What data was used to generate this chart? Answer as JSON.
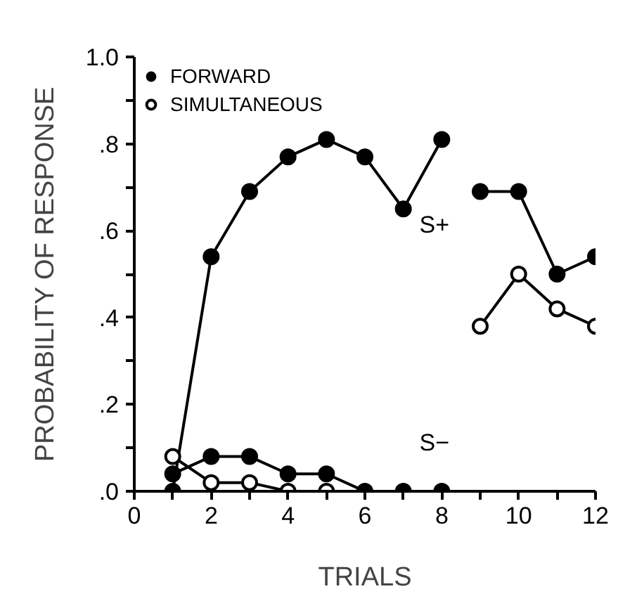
{
  "chart_data": {
    "type": "line",
    "xlabel": "TRIALS",
    "ylabel": "PROBABILITY OF RESPONSE",
    "xlim": [
      0,
      12
    ],
    "ylim": [
      0,
      1.0
    ],
    "xticks": [
      0,
      {
        "value": 1,
        "label": null
      },
      2,
      {
        "value": 3,
        "label": null
      },
      4,
      {
        "value": 5,
        "label": null
      },
      6,
      {
        "value": 7,
        "label": null
      },
      8,
      {
        "value": 9,
        "label": null
      },
      10,
      {
        "value": 11,
        "label": null
      },
      12
    ],
    "yticks": [
      {
        "value": 0,
        "label": ".0"
      },
      {
        "value": 0.1,
        "label": null
      },
      {
        "value": 0.2,
        "label": ".2"
      },
      {
        "value": 0.3,
        "label": null
      },
      {
        "value": 0.4,
        "label": ".4"
      },
      {
        "value": 0.5,
        "label": null
      },
      {
        "value": 0.6,
        "label": ".6"
      },
      {
        "value": 0.7,
        "label": null
      },
      {
        "value": 0.8,
        "label": ".8"
      },
      {
        "value": 0.9,
        "label": null
      },
      {
        "value": 1.0,
        "label": "1.0"
      }
    ],
    "grid": false,
    "legend": "top left",
    "line_style": "solid",
    "series": [
      {
        "name": "FORWARD",
        "color": "#000000",
        "marker": "circle",
        "x": [
          1,
          2,
          3,
          4,
          5,
          6,
          7,
          8
        ],
        "values": [
          0.0,
          0.54,
          0.69,
          0.77,
          0.81,
          0.77,
          0.65,
          0.81
        ]
      },
      {
        "color": "#000000",
        "marker": "circle",
        "x": [
          9,
          10,
          11,
          12
        ],
        "values": [
          0.69,
          0.69,
          0.5,
          0.54
        ]
      },
      {
        "color": "#000000",
        "marker": "circle",
        "x": [
          1,
          2,
          3,
          4,
          5,
          6,
          7,
          8
        ],
        "values": [
          0.04,
          0.08,
          0.08,
          0.04,
          0.04,
          0.0,
          0.0,
          0.0
        ]
      },
      {
        "name": "SIMULTANEOUS",
        "color": "#000000",
        "marker": "circle_open",
        "x": [
          1,
          2,
          3,
          4,
          5
        ],
        "values": [
          0.08,
          0.02,
          0.02,
          0.0,
          0.0
        ]
      },
      {
        "color": "#000000",
        "marker": "circle_open",
        "x": [
          9,
          10,
          11,
          12
        ],
        "values": [
          0.38,
          0.5,
          0.42,
          0.38
        ]
      }
    ],
    "annotations": [
      "S+",
      "S−"
    ]
  }
}
